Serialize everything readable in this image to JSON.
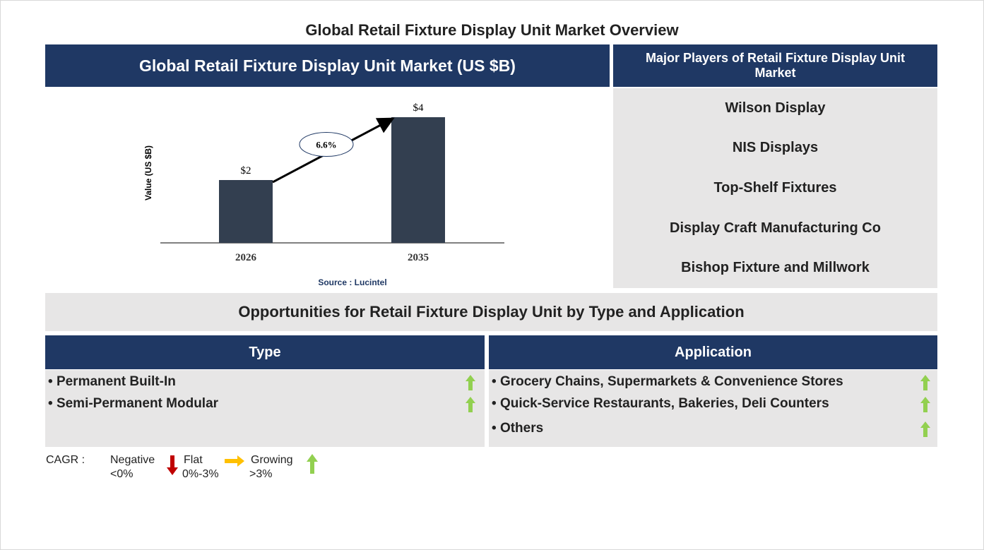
{
  "title": "Global Retail Fixture Display Unit Market Overview",
  "chart_data": {
    "type": "bar",
    "title": "Global Retail Fixture Display Unit Market (US $B)",
    "y_label": "Value (US $B)",
    "categories": [
      "2026",
      "2035"
    ],
    "values": [
      2,
      4
    ],
    "value_labels": [
      "$2",
      "$4"
    ],
    "color": "#333f50",
    "annotation": "6.6%",
    "source": "Source : Lucintel"
  },
  "players": {
    "title": "Major Players of Retail Fixture Display Unit Market",
    "items": [
      "Wilson Display",
      "NIS Displays",
      "Top-Shelf Fixtures",
      "Display Craft Manufacturing Co",
      "Bishop Fixture and Millwork"
    ]
  },
  "opportunities": {
    "title": "Opportunities for Retail Fixture Display Unit by Type and Application",
    "type": {
      "title": "Type",
      "items": [
        {
          "label": "Permanent Built-In",
          "trend": "up"
        },
        {
          "label": "Semi-Permanent Modular",
          "trend": "up"
        }
      ]
    },
    "application": {
      "title": "Application",
      "items": [
        {
          "label": "Grocery Chains, Supermarkets & Convenience Stores",
          "trend": "up"
        },
        {
          "label": "Quick-Service Restaurants, Bakeries, Deli Counters",
          "trend": "up"
        },
        {
          "label": "Others",
          "trend": "up"
        }
      ]
    }
  },
  "legend": {
    "label": "CAGR :",
    "items": [
      {
        "name": "Negative",
        "range": "<0%"
      },
      {
        "name": "Flat",
        "range": "0%-3%"
      },
      {
        "name": "Growing",
        "range": ">3%"
      }
    ]
  }
}
